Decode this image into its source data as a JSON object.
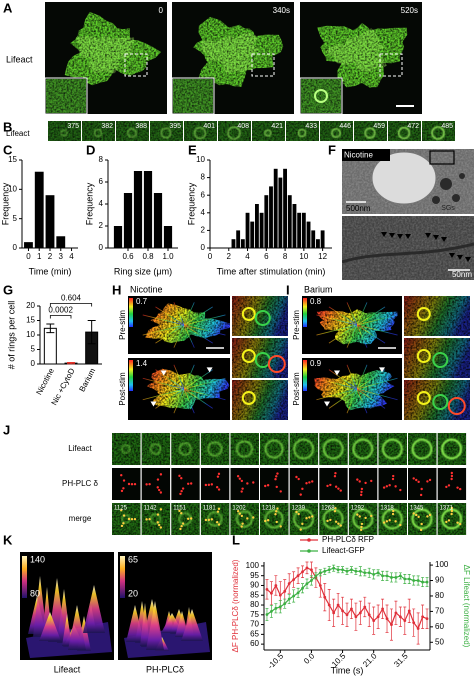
{
  "panels": {
    "A": {
      "label": "A",
      "row_label": "Lifeact",
      "timestamps": [
        "0",
        "340s",
        "520s"
      ]
    },
    "B": {
      "label": "B",
      "row_label": "Lifeact",
      "frames": [
        "375",
        "382",
        "388",
        "395",
        "401",
        "408",
        "421",
        "433",
        "446",
        "459",
        "472",
        "485"
      ]
    },
    "F": {
      "label": "F",
      "condition": "Nicotine",
      "organelle": "SGs",
      "scale_top": "500nm",
      "scale_bottom": "50nm"
    },
    "H": {
      "label": "H",
      "condition": "Nicotine",
      "rows": [
        "Pre-stim",
        "Post-stim"
      ],
      "colorbar_max": [
        "0.7",
        "1.4"
      ]
    },
    "I": {
      "label": "I",
      "condition": "Barium",
      "rows": [
        "Pre-stim",
        "Post-stim"
      ],
      "colorbar_max": [
        "0.8",
        "0.9"
      ]
    },
    "J": {
      "label": "J",
      "rows": [
        "Lifeact",
        "PH-PLC δ",
        "merge"
      ],
      "frames": [
        "1125",
        "1142",
        "1151",
        "1181",
        "1202",
        "1218",
        "1239",
        "1268",
        "1292",
        "1318",
        "1345",
        "1371"
      ]
    },
    "K": {
      "label": "K",
      "lifeact": {
        "max": "140",
        "min": "80",
        "caption": "Lifeact"
      },
      "plc": {
        "max": "65",
        "min": "20",
        "caption": "PH-PLCδ"
      }
    }
  },
  "chart_data": [
    {
      "type": "bar",
      "panel": "C",
      "ylabel": "Frequency",
      "xlabel": "Time (min)",
      "color": "#000000",
      "x": [
        0,
        1,
        2,
        3
      ],
      "values": [
        1,
        13,
        9,
        2
      ],
      "xlim": [
        -0.6,
        4.6
      ],
      "xticks": [
        0,
        1,
        2,
        3,
        4
      ],
      "ylim": [
        0,
        15
      ],
      "yticks": [
        0,
        5,
        10,
        15
      ]
    },
    {
      "type": "bar",
      "panel": "D",
      "ylabel": "Frequency",
      "xlabel": "Ring size (μm)",
      "color": "#000000",
      "x": [
        0.5,
        0.6,
        0.7,
        0.8,
        0.9,
        1.0
      ],
      "values": [
        2,
        5,
        7,
        7,
        5,
        2
      ],
      "xlim": [
        0.4,
        1.1
      ],
      "xticks": [
        0.6,
        0.8,
        {
          "value": 1,
          "label": "1.0"
        }
      ],
      "ylim": [
        0,
        8
      ],
      "yticks": [
        0,
        2,
        4,
        6,
        8
      ]
    },
    {
      "type": "bar",
      "panel": "E",
      "ylabel": "Frequency",
      "xlabel": "Time after stimulation (min)",
      "color": "#000000",
      "x": [
        2.5,
        3,
        3.5,
        4,
        4.5,
        5,
        5.5,
        6,
        6.5,
        7,
        7.5,
        8,
        8.5,
        9,
        9.5,
        10,
        10.5,
        11,
        11.5,
        12
      ],
      "values": [
        1,
        2,
        1,
        4,
        3,
        5,
        4,
        6,
        7,
        9,
        8,
        9,
        6,
        5,
        4,
        4,
        3,
        2,
        1,
        2
      ],
      "xlim": [
        0,
        13
      ],
      "xticks": [
        0,
        2,
        4,
        6,
        8,
        10,
        12
      ],
      "ylim": [
        0,
        10
      ],
      "yticks": [
        0,
        2,
        4,
        6,
        8,
        10
      ]
    },
    {
      "type": "bar",
      "panel": "G",
      "ylabel": "# of rings per cell",
      "categories": [
        "Nicotine",
        "Nic +CytoD",
        "Barium"
      ],
      "values": [
        12.3,
        0.3,
        11
      ],
      "errors": [
        1.5,
        0.2,
        4
      ],
      "colors": [
        "#ffffff",
        "#e8332a",
        "#111111"
      ],
      "significance": [
        "0.0002",
        "0.604"
      ],
      "ylim": [
        0,
        20
      ],
      "yticks": [
        0,
        5,
        10,
        15,
        20
      ]
    },
    {
      "type": "line",
      "panel": "L",
      "xlabel": "Time (s)",
      "ylabel": "ΔF PH-PLCδ (normalized)",
      "y2label": "ΔF Lifeact (normalized)",
      "x": [
        -15,
        -13.5,
        -12,
        -10.5,
        -9,
        -7.5,
        -6,
        -4.5,
        -3,
        -1.5,
        0,
        1.5,
        3,
        4.5,
        6,
        7.5,
        9,
        10.5,
        12,
        13.5,
        15,
        16.5,
        18,
        19.5,
        21,
        22.5,
        24,
        25.5,
        27,
        28.5,
        30,
        31.5,
        33,
        34.5,
        36,
        37.5,
        39
      ],
      "series": [
        {
          "name": "PH-PLCδ RFP",
          "color": "#e0303a",
          "values": [
            88,
            86,
            90,
            85,
            87,
            91,
            93,
            95,
            97,
            99,
            98,
            94,
            90,
            84,
            80,
            76,
            80,
            77,
            75,
            78,
            74,
            76,
            79,
            75,
            72,
            74,
            78,
            73,
            70,
            76,
            74,
            72,
            77,
            71,
            68,
            74,
            73
          ],
          "errors": [
            5,
            6,
            5,
            7,
            6,
            5,
            4,
            4,
            3,
            3,
            4,
            5,
            6,
            7,
            8,
            7,
            6,
            7,
            6,
            5,
            7,
            6,
            5,
            6,
            7,
            6,
            5,
            7,
            8,
            6,
            5,
            7,
            6,
            7,
            8,
            6,
            5
          ]
        },
        {
          "name": "Lifeact-GFP",
          "color": "#3cb043",
          "axis": "y2",
          "values": [
            68,
            70,
            72,
            73,
            75,
            78,
            80,
            82,
            85,
            88,
            90,
            93,
            95,
            96,
            97,
            98,
            97,
            97,
            96,
            97,
            96,
            96,
            95,
            95,
            94,
            95,
            93,
            93,
            92,
            92,
            93,
            91,
            91,
            90,
            90,
            89,
            89
          ],
          "errors": [
            4,
            4,
            3,
            4,
            3,
            3,
            4,
            3,
            3,
            3,
            3,
            2,
            2,
            2,
            2,
            2,
            2,
            2,
            2,
            2,
            2,
            3,
            2,
            3,
            3,
            2,
            3,
            3,
            3,
            3,
            2,
            3,
            3,
            3,
            3,
            3,
            3
          ]
        }
      ],
      "xlim": [
        -16,
        40
      ],
      "xticks": [
        -10.5,
        {
          "value": 0,
          "label": "0.0"
        },
        10.5,
        {
          "value": 21,
          "label": "21.0"
        },
        31.5
      ],
      "ylim": [
        57,
        102
      ],
      "yticks": [
        60,
        65,
        70,
        75,
        80,
        85,
        90,
        95,
        100
      ],
      "y2lim": [
        45,
        102
      ],
      "y2ticks": [
        50,
        60,
        70,
        80,
        90,
        100
      ]
    }
  ]
}
